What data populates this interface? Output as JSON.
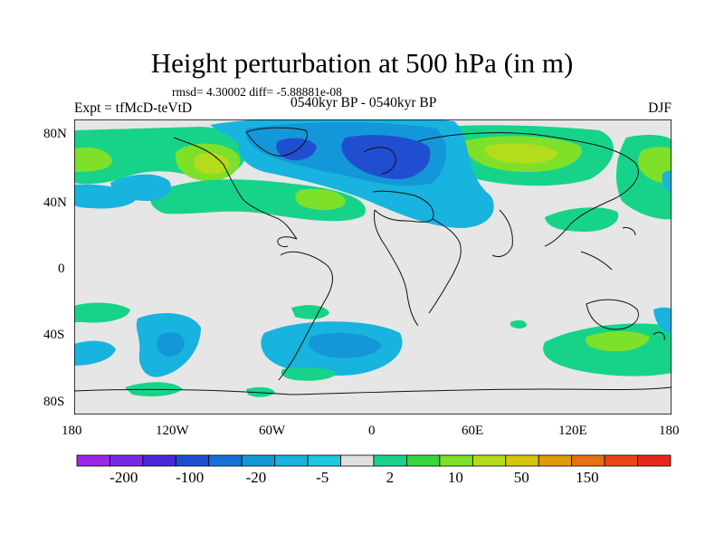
{
  "title": "Height perturbation at 500 hPa (in m)",
  "stats_line": "rmsd= 4.30002 diff= -5.88881e-08",
  "experiment": "Expt = tfMcD-teVtD",
  "period": "0540kyr BP - 0540kyr BP",
  "season": "DJF",
  "axes": {
    "y_ticks": [
      "80N",
      "40N",
      "0",
      "40S",
      "80S"
    ],
    "x_ticks": [
      "180",
      "120W",
      "60W",
      "0",
      "60E",
      "120E",
      "180"
    ]
  },
  "colorbar": {
    "labels": [
      "-200",
      "-100",
      "-20",
      "-5",
      "2",
      "10",
      "50",
      "150"
    ],
    "colors": [
      "#9b28e6",
      "#7a2ae6",
      "#4a28d8",
      "#1f4fd0",
      "#1672d8",
      "#1497d8",
      "#18b3de",
      "#1ec8df",
      "#e0e0e0",
      "#17d38a",
      "#38d63c",
      "#7fe02a",
      "#b5dc1a",
      "#d6c40f",
      "#e09a0a",
      "#e67012",
      "#ea4618",
      "#e8281c"
    ],
    "label_positions": [
      1,
      3,
      5,
      7,
      9,
      11,
      13,
      15
    ]
  },
  "map_regions": {
    "background": "#e6e6e6",
    "fills": [
      {
        "name": "arctic-negative-core",
        "color": "#1e5fd0"
      },
      {
        "name": "arctic-negative",
        "color": "#1497d8"
      },
      {
        "name": "positive-light",
        "color": "#17d38a"
      },
      {
        "name": "positive-mid",
        "color": "#7fe02a"
      },
      {
        "name": "positive-strong",
        "color": "#b5dc1a"
      },
      {
        "name": "southern-negative",
        "color": "#18b3de"
      }
    ]
  }
}
